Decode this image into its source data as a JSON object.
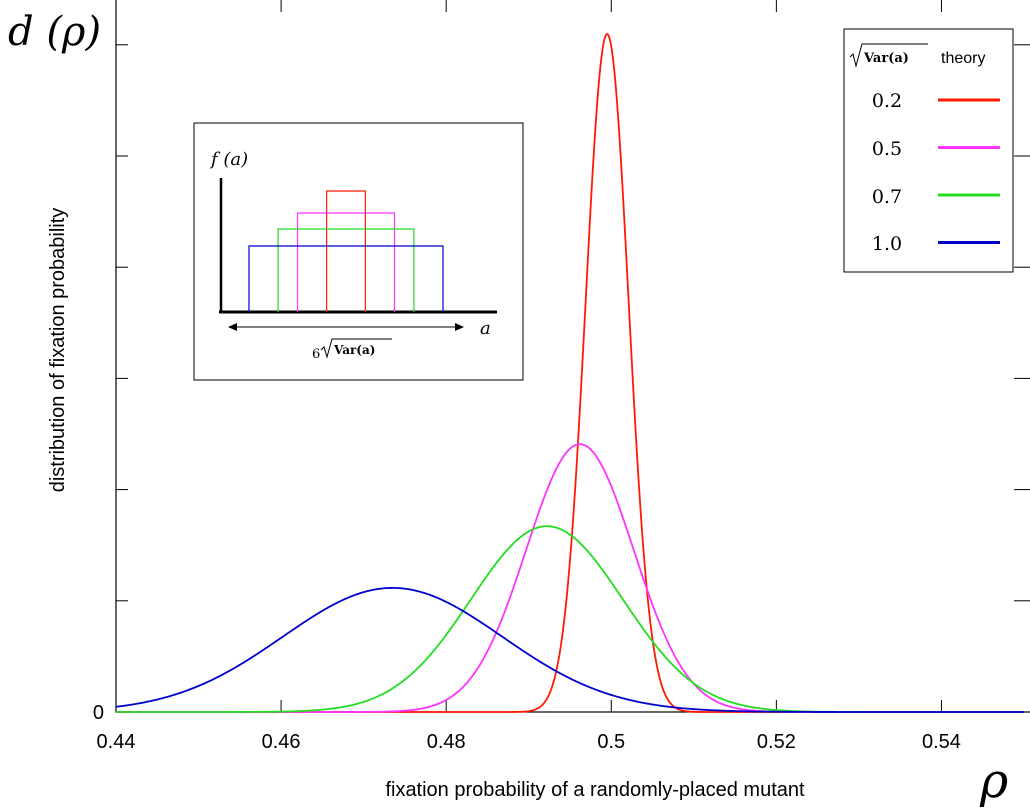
{
  "chart_data": {
    "type": "line",
    "xlabel": "fixation probability of a randomly-placed mutant",
    "ylabel": "distribution of fixation probability",
    "x_symbol": "ρ",
    "y_symbol": "d (ρ)",
    "xlim": [
      0.44,
      0.55
    ],
    "ylim": [
      0,
      1.05
    ],
    "x_ticks": [
      0.44,
      0.46,
      0.48,
      0.5,
      0.52,
      0.54
    ],
    "x_tick_labels": [
      "0.44",
      "0.46",
      "0.48",
      "0.5",
      "0.52",
      "0.54"
    ],
    "y_tick_labels": [
      "0"
    ],
    "legend": {
      "header_symbol": "Var(a)",
      "header_right": "theory",
      "position": "top-right",
      "entries": [
        {
          "label": "0.2",
          "color": "#ff1a00"
        },
        {
          "label": "0.5",
          "color": "#ff33ff"
        },
        {
          "label": "0.7",
          "color": "#22dd22"
        },
        {
          "label": "1.0",
          "color": "#0000cc"
        }
      ]
    },
    "series": [
      {
        "color": "#ff1a00",
        "peak_x": 0.4995,
        "peak_y": 1.0,
        "sd": 0.0026
      },
      {
        "color": "#ff33ff",
        "peak_x": 0.4962,
        "peak_y": 0.395,
        "sd": 0.0065
      },
      {
        "color": "#22dd22",
        "peak_x": 0.4922,
        "peak_y": 0.274,
        "sd": 0.0092
      },
      {
        "color": "#0000cc",
        "peak_x": 0.4735,
        "peak_y": 0.183,
        "sd": 0.0133
      }
    ],
    "inset": {
      "ylabel": "f (a)",
      "xlabel": "a",
      "width_label": "6",
      "width_label_symbol": "Var(a)",
      "rects": [
        {
          "color": "#ff1a00",
          "half_width": 0.2
        },
        {
          "color": "#ff33ff",
          "half_width": 0.5
        },
        {
          "color": "#22dd22",
          "half_width": 0.7
        },
        {
          "color": "#0000cc",
          "half_width": 1.0
        }
      ]
    }
  }
}
